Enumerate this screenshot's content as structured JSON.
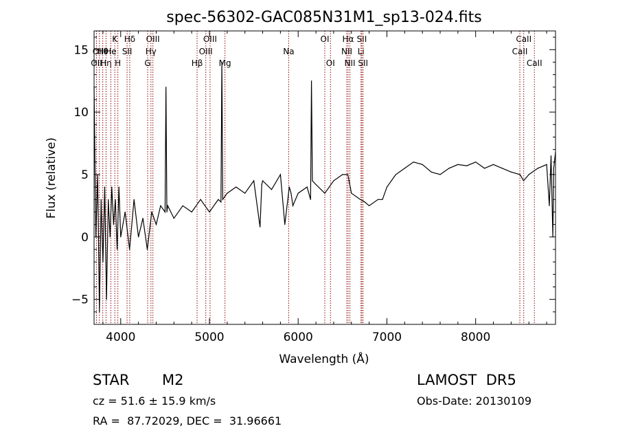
{
  "chart_data": {
    "type": "line",
    "title": "spec-56302-GAC085N31M1_sp13-024.fits",
    "xlabel": "Wavelength (Å)",
    "ylabel": "Flux (relative)",
    "xlim": [
      3700,
      8900
    ],
    "ylim": [
      -7,
      16.5
    ],
    "xticks": [
      4000,
      5000,
      6000,
      7000,
      8000
    ],
    "xtick_labels": [
      "4000",
      "5000",
      "6000",
      "7000",
      "8000"
    ],
    "yticks": [
      -5,
      0,
      5,
      10,
      15
    ],
    "ytick_labels": [
      "−5",
      "0",
      "5",
      "10",
      "15"
    ],
    "grid": false,
    "legend": "none",
    "line_color": "#000000",
    "marker_color": "#8b0000",
    "series": [
      {
        "x": [
          3700,
          3720,
          3740,
          3760,
          3780,
          3800,
          3820,
          3840,
          3860,
          3880,
          3900,
          3920,
          3940,
          3960,
          3980,
          4000,
          4050,
          4100,
          4150,
          4200,
          4250,
          4300,
          4350,
          4400,
          4450,
          4500,
          4510,
          4520,
          4530,
          4600,
          4700,
          4800,
          4900,
          5000,
          5100,
          5130,
          5140,
          5150,
          5200,
          5300,
          5400,
          5500,
          5570,
          5590,
          5600,
          5700,
          5800,
          5850,
          5900,
          5920,
          5940,
          6000,
          6100,
          6140,
          6150,
          6160,
          6200,
          6300,
          6400,
          6500,
          6560,
          6600,
          6700,
          6750,
          6800,
          6900,
          6950,
          7000,
          7100,
          7200,
          7300,
          7400,
          7500,
          7600,
          7700,
          7800,
          7900,
          8000,
          8100,
          8200,
          8300,
          8400,
          8500,
          8540,
          8600,
          8700,
          8800,
          8830,
          8850,
          8870,
          8880,
          8900
        ],
        "y": [
          12,
          0,
          5,
          -6,
          3,
          -2,
          4,
          -5,
          3,
          0,
          4,
          1,
          3,
          -1,
          4,
          0,
          2,
          -1,
          3,
          0,
          1.5,
          -1,
          2,
          1,
          2.5,
          2,
          12,
          2,
          2.5,
          1.5,
          2.5,
          2,
          3,
          2,
          3,
          2.8,
          14,
          3,
          3.5,
          4,
          3.5,
          4.5,
          0.8,
          4.2,
          4.5,
          3.8,
          5,
          1,
          4,
          3.5,
          2.5,
          3.5,
          4,
          3,
          12.5,
          4.5,
          4.2,
          3.5,
          4.5,
          5,
          5,
          3.5,
          3,
          2.8,
          2.5,
          3,
          3,
          4,
          5,
          5.5,
          6,
          5.8,
          5.2,
          5,
          5.5,
          5.8,
          5.7,
          6,
          5.5,
          5.8,
          5.5,
          5.2,
          5,
          4.5,
          5,
          5.5,
          5.8,
          2.5,
          6.5,
          0,
          5.5,
          6.8
        ]
      }
    ],
    "line_markers": [
      {
        "label": "Hθ",
        "x": 3798,
        "row": 1
      },
      {
        "label": "OII",
        "x": 3727,
        "row": 2
      },
      {
        "label": "OIII",
        "x": 3760,
        "row": 1
      },
      {
        "label": "Hη",
        "x": 3835,
        "row": 2
      },
      {
        "label": "K",
        "x": 3934,
        "row": 0
      },
      {
        "label": "He",
        "x": 3889,
        "row": 1
      },
      {
        "label": "H",
        "x": 3968,
        "row": 2
      },
      {
        "label": "Hδ",
        "x": 4102,
        "row": 0
      },
      {
        "label": "SII",
        "x": 4072,
        "row": 1
      },
      {
        "label": "OIII",
        "x": 4363,
        "row": 0
      },
      {
        "label": "Hγ",
        "x": 4341,
        "row": 1
      },
      {
        "label": "G",
        "x": 4304,
        "row": 2
      },
      {
        "label": "OIII",
        "x": 5007,
        "row": 0
      },
      {
        "label": "OIII",
        "x": 4959,
        "row": 1
      },
      {
        "label": "Hβ",
        "x": 4861,
        "row": 2
      },
      {
        "label": "Mg",
        "x": 5175,
        "row": 2
      },
      {
        "label": "Na",
        "x": 5893,
        "row": 1
      },
      {
        "label": "OI",
        "x": 6300,
        "row": 0
      },
      {
        "label": "OI",
        "x": 6364,
        "row": 2
      },
      {
        "label": "Hα",
        "x": 6563,
        "row": 0
      },
      {
        "label": "NII",
        "x": 6548,
        "row": 1
      },
      {
        "label": "NII",
        "x": 6583,
        "row": 2
      },
      {
        "label": "SII",
        "x": 6717,
        "row": 0
      },
      {
        "label": "Li",
        "x": 6708,
        "row": 1
      },
      {
        "label": "SII",
        "x": 6731,
        "row": 2
      },
      {
        "label": "CaII",
        "x": 8542,
        "row": 0
      },
      {
        "label": "CaII",
        "x": 8498,
        "row": 1
      },
      {
        "label": "CaII",
        "x": 8662,
        "row": 2
      }
    ]
  },
  "info": {
    "object_type": "STAR",
    "subclass": "M2",
    "survey": "LAMOST  DR5",
    "velocity": "cz = 51.6 ± 15.9 km/s",
    "obs_date": "Obs-Date: 20130109",
    "coordinates": "RA =  87.72029, DEC =  31.96661"
  }
}
